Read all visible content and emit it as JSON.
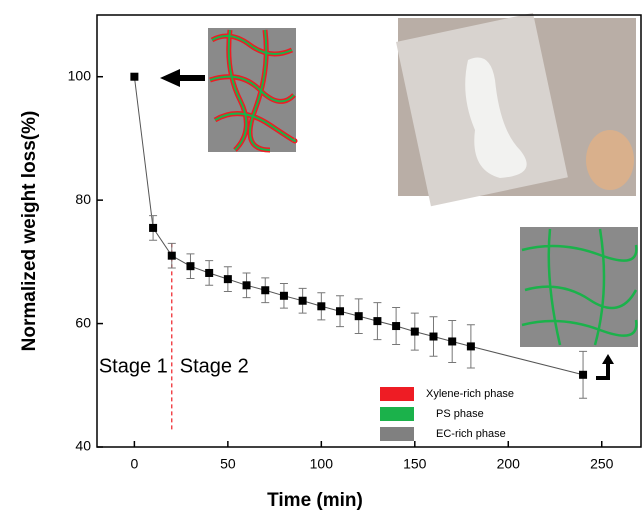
{
  "chart_data": {
    "type": "scatter",
    "x_label": "Time (min)",
    "y_label": "Normalized weight loss(%)",
    "x": [
      0,
      10,
      20,
      30,
      40,
      50,
      60,
      70,
      80,
      90,
      100,
      110,
      120,
      130,
      140,
      150,
      160,
      170,
      180,
      240
    ],
    "values": [
      100,
      75.5,
      71,
      69.3,
      68.2,
      67.2,
      66.2,
      65.4,
      64.5,
      63.7,
      62.8,
      62,
      61.2,
      60.4,
      59.6,
      58.7,
      57.9,
      57.1,
      56.3,
      51.7
    ],
    "errors": [
      null,
      2,
      2,
      2,
      2,
      2,
      2,
      2,
      2,
      2,
      2.2,
      2.5,
      2.8,
      3,
      3,
      3,
      3.2,
      3.4,
      3.5,
      3.8
    ],
    "color": "#000000",
    "xlim": [
      -20,
      271
    ],
    "xticks": [
      0,
      50,
      100,
      150,
      200,
      250
    ],
    "ylim": [
      40,
      110
    ],
    "yticks": [
      40,
      60,
      80,
      100
    ],
    "stage_boundary": 20,
    "annotations": [
      "Stage 1",
      "Stage 2"
    ],
    "legend": [
      {
        "name": "Xylene-rich phase",
        "color": "#ee1c24"
      },
      {
        "name": "PS phase",
        "color": "#1bb24b"
      },
      {
        "name": "EC-rich phase",
        "color": "#808080"
      }
    ]
  }
}
